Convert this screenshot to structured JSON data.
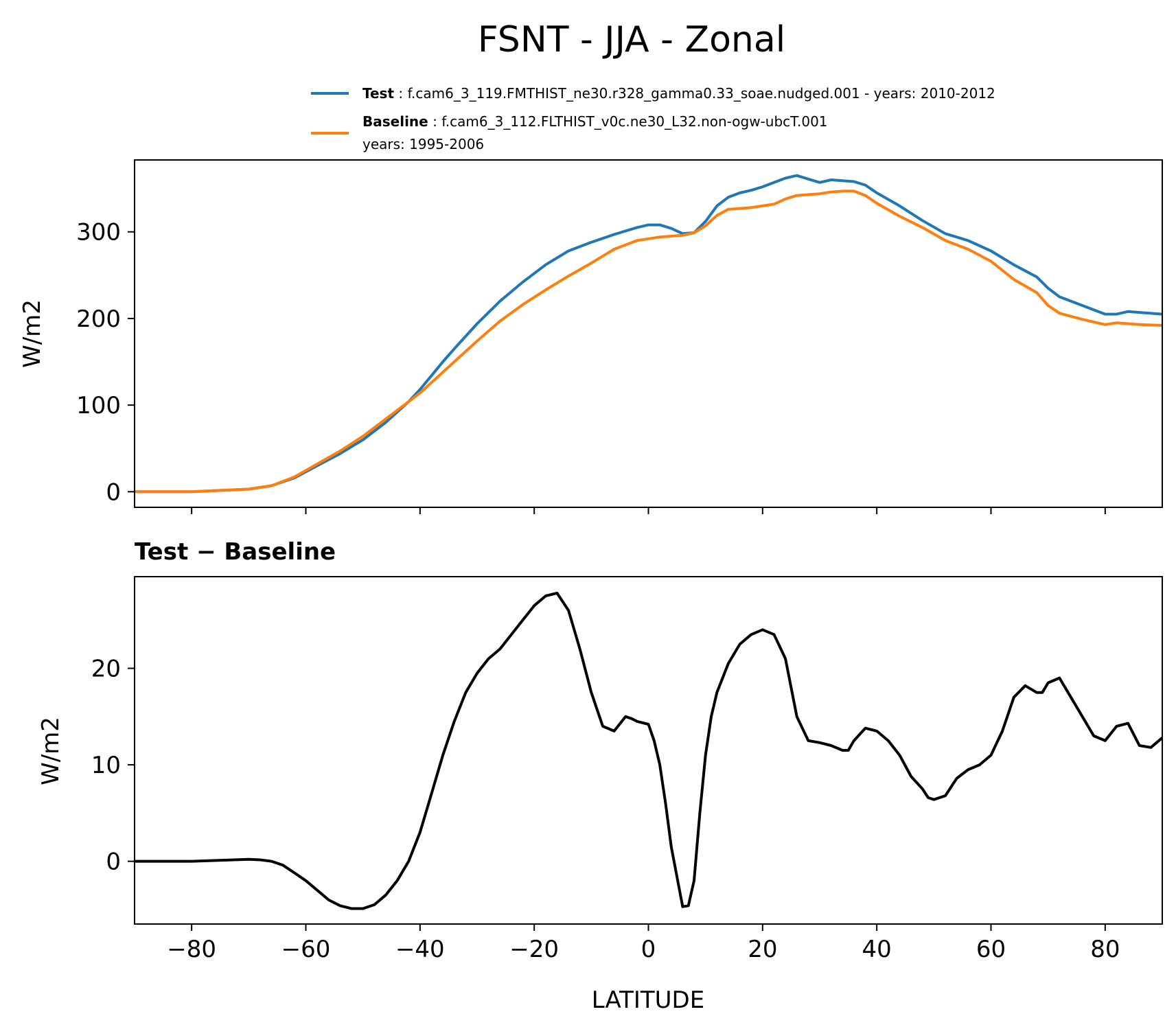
{
  "figure": {
    "title": "FSNT - JJA - Zonal",
    "legend": {
      "test": {
        "name": "Test",
        "sep": " : ",
        "text": "f.cam6_3_119.FMTHIST_ne30.r328_gamma0.33_soae.nudged.001 - years: 2010-2012"
      },
      "baseline": {
        "name": "Baseline",
        "sep": " : ",
        "text": "f.cam6_3_112.FLTHIST_v0c.ne30_L32.non-ogw-ubcT.001",
        "text2": "years: 1995-2006"
      }
    }
  },
  "chart_data": [
    {
      "type": "line",
      "panel": "top",
      "title": "",
      "xlabel": "",
      "ylabel": "W/m2",
      "xlim": [
        -90,
        90
      ],
      "ylim": [
        -18,
        383
      ],
      "xticks": [
        -80,
        -60,
        -40,
        -20,
        0,
        20,
        40,
        60,
        80
      ],
      "yticks": [
        0,
        100,
        200,
        300
      ],
      "legend_position": "top-right",
      "grid": false,
      "series": [
        {
          "name": "Test",
          "color": "#1f77b4",
          "x": [
            -90,
            -80,
            -70,
            -66,
            -62,
            -58,
            -54,
            -50,
            -46,
            -42,
            -40,
            -38,
            -36,
            -34,
            -30,
            -26,
            -22,
            -18,
            -14,
            -10,
            -6,
            -2,
            0,
            2,
            4,
            6,
            8,
            10,
            12,
            14,
            16,
            18,
            20,
            22,
            24,
            26,
            28,
            30,
            32,
            34,
            36,
            38,
            40,
            44,
            48,
            52,
            56,
            60,
            64,
            68,
            70,
            72,
            76,
            80,
            82,
            84,
            86,
            90
          ],
          "y": [
            0,
            0,
            3,
            7,
            16,
            30,
            44,
            60,
            80,
            104,
            118,
            134,
            150,
            165,
            194,
            220,
            242,
            262,
            278,
            288,
            297,
            305,
            308,
            308,
            304,
            298,
            299,
            312,
            330,
            340,
            345,
            348,
            352,
            357,
            362,
            365,
            361,
            357,
            360,
            359,
            358,
            354,
            345,
            330,
            313,
            298,
            290,
            278,
            262,
            248,
            235,
            225,
            215,
            205,
            205,
            208,
            207,
            205
          ]
        },
        {
          "name": "Baseline",
          "color": "#ff7f0e",
          "x": [
            -90,
            -80,
            -70,
            -66,
            -62,
            -58,
            -54,
            -50,
            -46,
            -42,
            -40,
            -38,
            -36,
            -34,
            -30,
            -26,
            -22,
            -18,
            -14,
            -10,
            -6,
            -2,
            0,
            2,
            4,
            6,
            8,
            10,
            12,
            14,
            16,
            18,
            20,
            22,
            24,
            26,
            28,
            30,
            32,
            34,
            36,
            38,
            40,
            44,
            48,
            52,
            56,
            60,
            64,
            68,
            70,
            72,
            76,
            80,
            82,
            84,
            86,
            90
          ],
          "y": [
            0,
            0,
            3,
            7,
            17,
            32,
            47,
            64,
            84,
            104,
            114,
            126,
            138,
            150,
            174,
            197,
            216,
            233,
            249,
            264,
            280,
            290,
            292,
            294,
            295,
            296,
            299,
            307,
            319,
            326,
            327,
            328,
            330,
            332,
            338,
            342,
            343,
            344,
            346,
            347,
            347,
            342,
            333,
            318,
            305,
            290,
            280,
            266,
            245,
            230,
            215,
            206,
            199,
            193,
            195,
            194,
            193,
            192
          ]
        }
      ]
    },
    {
      "type": "line",
      "panel": "bottom",
      "title": "Test − Baseline",
      "xlabel": "LATITUDE",
      "ylabel": "W/m2",
      "xlim": [
        -90,
        90
      ],
      "ylim": [
        -6.5,
        29.5
      ],
      "xticks": [
        -80,
        -60,
        -40,
        -20,
        0,
        20,
        40,
        60,
        80
      ],
      "yticks": [
        0,
        10,
        20
      ],
      "grid": false,
      "series": [
        {
          "color": "#000000",
          "x": [
            -90,
            -80,
            -70,
            -68,
            -66,
            -64,
            -62,
            -60,
            -58,
            -56,
            -54,
            -52,
            -50,
            -48,
            -46,
            -44,
            -42,
            -40,
            -38,
            -36,
            -34,
            -32,
            -30,
            -28,
            -26,
            -24,
            -22,
            -20,
            -18,
            -16,
            -14,
            -12,
            -10,
            -8,
            -6,
            -4,
            -3,
            -2,
            0,
            1,
            2,
            3,
            4,
            6,
            7,
            8,
            9,
            10,
            11,
            12,
            14,
            16,
            18,
            20,
            22,
            24,
            25,
            26,
            28,
            30,
            32,
            34,
            35,
            36,
            38,
            40,
            42,
            44,
            46,
            48,
            49,
            50,
            52,
            54,
            56,
            58,
            60,
            62,
            64,
            66,
            68,
            69,
            70,
            72,
            74,
            76,
            78,
            80,
            82,
            84,
            86,
            88,
            90
          ],
          "y": [
            0,
            0,
            0.2,
            0.15,
            0,
            -0.4,
            -1.2,
            -2.0,
            -3.0,
            -4.0,
            -4.6,
            -4.9,
            -4.9,
            -4.5,
            -3.5,
            -2.0,
            0,
            3.0,
            7.0,
            11.0,
            14.5,
            17.5,
            19.5,
            21.0,
            22.0,
            23.5,
            25.0,
            26.5,
            27.5,
            27.8,
            26.0,
            22.0,
            17.5,
            14.0,
            13.5,
            15.0,
            14.8,
            14.5,
            14.2,
            12.5,
            10.0,
            6.0,
            1.5,
            -4.7,
            -4.6,
            -2.0,
            5.0,
            11.0,
            15.0,
            17.5,
            20.5,
            22.5,
            23.5,
            24.0,
            23.5,
            21.0,
            18.0,
            15.0,
            12.5,
            12.3,
            12.0,
            11.5,
            11.5,
            12.5,
            13.8,
            13.5,
            12.5,
            11.0,
            8.8,
            7.5,
            6.6,
            6.4,
            6.8,
            8.6,
            9.5,
            10.0,
            11.0,
            13.5,
            17.0,
            18.2,
            17.5,
            17.5,
            18.5,
            19.0,
            17.0,
            15.0,
            13.0,
            12.5,
            14.0,
            14.3,
            12.0,
            11.8,
            12.8
          ]
        }
      ]
    }
  ]
}
